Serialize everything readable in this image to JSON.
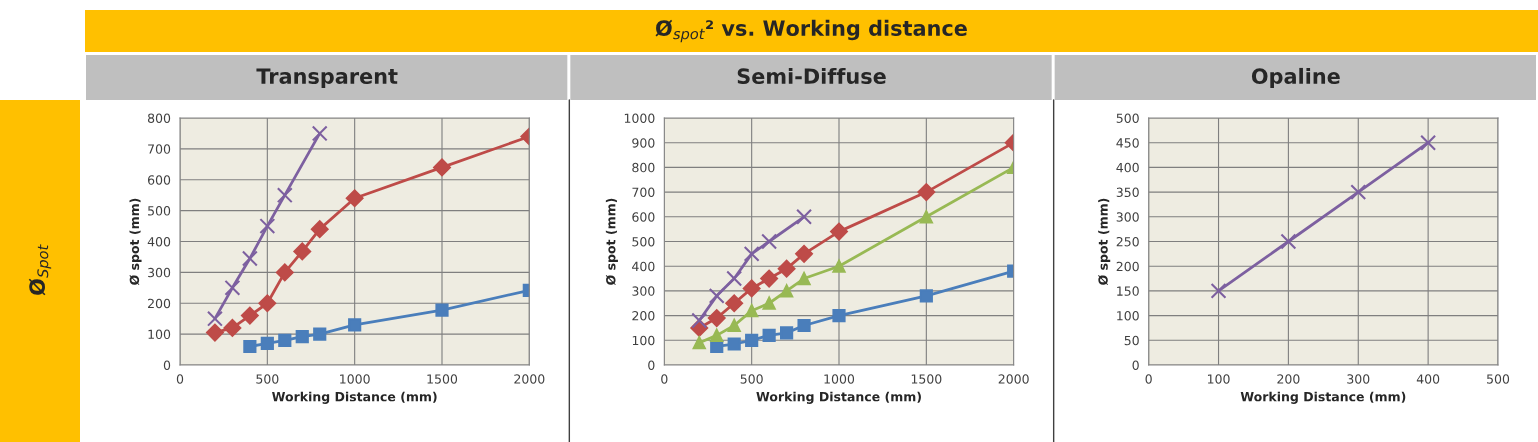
{
  "chart_data": [
    {
      "type": "line",
      "title": "Transparent",
      "xlabel": "Working Distance (mm)",
      "ylabel": "Ø spot (mm)",
      "annotations": [
        "Ø$_{spot}$² vs. Working distance",
        "Ø$_{Spot}$"
      ],
      "xlim": [
        0,
        2000
      ],
      "xticks": [
        0,
        500,
        1000,
        1500,
        2000
      ],
      "ylim": [
        0,
        800
      ],
      "yticks": [
        0,
        100,
        200,
        300,
        400,
        500,
        600,
        700,
        800
      ],
      "grid": true,
      "series": [
        {
          "color": "#4a7ebb",
          "marker": "square",
          "x": [
            400,
            500,
            600,
            700,
            800,
            1000,
            1500,
            2000
          ],
          "values": [
            60,
            70,
            80,
            92,
            100,
            130,
            178,
            242
          ]
        },
        {
          "color": "#be4b48",
          "marker": "diamond",
          "x": [
            200,
            300,
            400,
            500,
            600,
            700,
            800,
            1000,
            1500,
            2000
          ],
          "values": [
            105,
            120,
            160,
            200,
            300,
            368,
            440,
            540,
            640,
            740
          ]
        },
        {
          "color": "#7d60a0",
          "marker": "cross",
          "x": [
            200,
            300,
            400,
            500,
            600,
            800
          ],
          "values": [
            150,
            250,
            345,
            450,
            550,
            750
          ]
        }
      ]
    },
    {
      "type": "line",
      "title": "Semi-Diffuse",
      "xlabel": "Working Distance (mm)",
      "ylabel": "Ø spot (mm)",
      "xlim": [
        0,
        2000
      ],
      "xticks": [
        0,
        500,
        1000,
        1500,
        2000
      ],
      "ylim": [
        0,
        1000
      ],
      "yticks": [
        0,
        100,
        200,
        300,
        400,
        500,
        600,
        700,
        800,
        900,
        1000
      ],
      "grid": true,
      "series": [
        {
          "color": "#4a7ebb",
          "marker": "square",
          "x": [
            300,
            400,
            500,
            600,
            700,
            800,
            1000,
            1500,
            2000
          ],
          "values": [
            75,
            85,
            100,
            120,
            130,
            160,
            200,
            280,
            380
          ]
        },
        {
          "color": "#be4b48",
          "marker": "diamond",
          "x": [
            200,
            300,
            400,
            500,
            600,
            700,
            800,
            1000,
            1500,
            2000
          ],
          "values": [
            150,
            190,
            250,
            310,
            350,
            390,
            450,
            540,
            700,
            900
          ]
        },
        {
          "color": "#98b954",
          "marker": "triangle",
          "x": [
            200,
            300,
            400,
            500,
            600,
            700,
            800,
            1000,
            1500,
            2000
          ],
          "values": [
            90,
            120,
            160,
            220,
            250,
            300,
            350,
            400,
            600,
            800
          ]
        },
        {
          "color": "#7d60a0",
          "marker": "cross",
          "x": [
            200,
            300,
            400,
            500,
            600,
            800
          ],
          "values": [
            180,
            280,
            350,
            450,
            500,
            600
          ]
        }
      ]
    },
    {
      "type": "line",
      "title": "Opaline",
      "xlabel": "Working Distance (mm)",
      "ylabel": "Ø spot (mm)",
      "xlim": [
        0,
        500
      ],
      "xticks": [
        0,
        100,
        200,
        300,
        400,
        500
      ],
      "ylim": [
        0,
        500
      ],
      "yticks": [
        0,
        50,
        100,
        150,
        200,
        250,
        300,
        350,
        400,
        450,
        500
      ],
      "grid": true,
      "series": [
        {
          "color": "#7d60a0",
          "marker": "cross",
          "x": [
            100,
            200,
            300,
            400
          ],
          "values": [
            150,
            250,
            350,
            450
          ]
        }
      ]
    }
  ]
}
